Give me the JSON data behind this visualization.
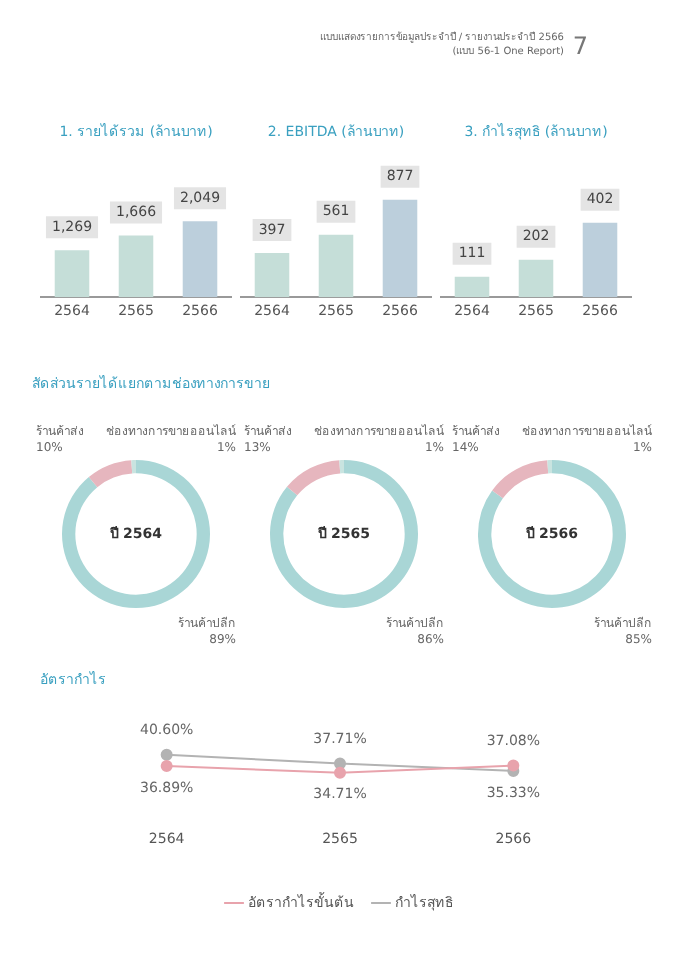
{
  "chart_data": [
    {
      "type": "bar",
      "title": "1. รายได้รวม (ล้านบาท)",
      "annotations": [
        "แบบแสดงรายการข้อมูลประจำปี / รายงานประจำปี 2566",
        "(แบบ 56-1 One Report)",
        "7"
      ],
      "categories": [
        "2564",
        "2565",
        "2566"
      ],
      "values": [
        1269,
        1666,
        2049
      ],
      "colors": [
        "#c5ded8",
        "#c5ded8",
        "#bccfdc"
      ],
      "value_labels": [
        "1,269",
        "1,666",
        "2,049"
      ]
    },
    {
      "type": "bar",
      "title": "2. EBITDA (ล้านบาท)",
      "categories": [
        "2564",
        "2565",
        "2566"
      ],
      "values": [
        397,
        561,
        877
      ],
      "colors": [
        "#c5ded8",
        "#c5ded8",
        "#bccfdc"
      ],
      "value_labels": [
        "397",
        "561",
        "877"
      ]
    },
    {
      "type": "bar",
      "title": "3. กำไรสุทธิ (ล้านบาท)",
      "categories": [
        "2564",
        "2565",
        "2566"
      ],
      "values": [
        111,
        202,
        402
      ],
      "colors": [
        "#c5ded8",
        "#c5ded8",
        "#bccfdc"
      ],
      "value_labels": [
        "111",
        "202",
        "402"
      ]
    },
    {
      "type": "donut",
      "subtitle": "สัดส่วนรายได้แยกตามช่องทางการขาย",
      "title": "ปี 2564",
      "categories": [
        "ร้านค้าปลีก",
        "ร้านค้าส่ง",
        "ช่องทางการขายออนไลน์"
      ],
      "values": [
        89,
        10,
        1
      ],
      "colors": [
        "#a9d6d6",
        "#e6b6be",
        "#c9e4e0"
      ],
      "value_labels": [
        "89%",
        "10%",
        "1%"
      ]
    },
    {
      "type": "donut",
      "title": "ปี 2565",
      "categories": [
        "ร้านค้าปลีก",
        "ร้านค้าส่ง",
        "ช่องทางการขายออนไลน์"
      ],
      "values": [
        86,
        13,
        1
      ],
      "colors": [
        "#a9d6d6",
        "#e6b6be",
        "#c9e4e0"
      ],
      "value_labels": [
        "86%",
        "13%",
        "1%"
      ]
    },
    {
      "type": "donut",
      "title": "ปี 2566",
      "categories": [
        "ร้านค้าปลีก",
        "ร้านค้าส่ง",
        "ช่องทางการขายออนไลน์"
      ],
      "values": [
        85,
        14,
        1
      ],
      "colors": [
        "#a9d6d6",
        "#e6b6be",
        "#c9e4e0"
      ],
      "value_labels": [
        "85%",
        "14%",
        "1%"
      ]
    },
    {
      "type": "line",
      "title": "อัตรากำไร",
      "categories": [
        "2564",
        "2565",
        "2566"
      ],
      "legend": "bottom",
      "marker": "circle",
      "grid": false,
      "series": [
        {
          "name": "อัตรากำไรขั้นต้น",
          "color": "#e8a3ac",
          "values": [
            36.89,
            34.71,
            37.08
          ],
          "value_labels": [
            "36.89%",
            "34.71%",
            "37.08%"
          ]
        },
        {
          "name": "กำไรสุทธิ",
          "color": "#b3b3b3",
          "values": [
            40.6,
            37.71,
            35.33
          ],
          "value_labels": [
            "40.60%",
            "37.71%",
            "35.33%"
          ]
        }
      ]
    }
  ]
}
